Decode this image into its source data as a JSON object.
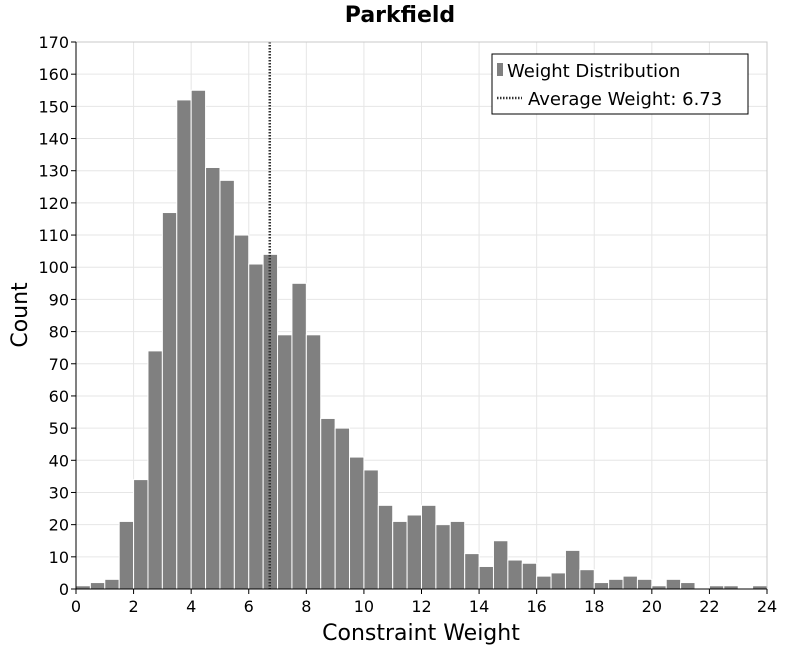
{
  "chart_data": {
    "type": "bar",
    "title": "Parkfield",
    "xlabel": "Constraint Weight",
    "ylabel": "Count",
    "xlim": [
      0,
      24
    ],
    "ylim": [
      0,
      170
    ],
    "xticks": [
      0,
      2,
      4,
      6,
      8,
      10,
      12,
      14,
      16,
      18,
      20,
      22,
      24
    ],
    "yticks": [
      0,
      10,
      20,
      30,
      40,
      50,
      60,
      70,
      80,
      90,
      100,
      110,
      120,
      130,
      140,
      150,
      160,
      170
    ],
    "grid": true,
    "legend_position": "top-right",
    "bin_width": 0.5,
    "bin_starts": [
      0,
      0.5,
      1,
      1.5,
      2,
      2.5,
      3,
      3.5,
      4,
      4.5,
      5,
      5.5,
      6,
      6.5,
      7,
      7.5,
      8,
      8.5,
      9,
      9.5,
      10,
      10.5,
      11,
      11.5,
      12,
      12.5,
      13,
      13.5,
      14,
      14.5,
      15,
      15.5,
      16,
      16.5,
      17,
      17.5,
      18,
      18.5,
      19,
      19.5,
      20,
      20.5,
      21,
      21.5,
      22,
      22.5,
      23,
      23.5
    ],
    "values": [
      1,
      2,
      3,
      21,
      34,
      74,
      117,
      152,
      155,
      131,
      127,
      110,
      101,
      104,
      79,
      95,
      79,
      53,
      50,
      41,
      37,
      26,
      21,
      23,
      26,
      20,
      21,
      11,
      7,
      15,
      9,
      8,
      4,
      5,
      12,
      6,
      2,
      3,
      4,
      3,
      1,
      3,
      2,
      0,
      1,
      1,
      0,
      1
    ],
    "series": [
      {
        "name": "Weight Distribution",
        "color": "#808080"
      }
    ],
    "reference_line": {
      "label": "Average Weight: 6.73",
      "value": 6.73,
      "style": "dotted",
      "color": "#333333"
    }
  }
}
